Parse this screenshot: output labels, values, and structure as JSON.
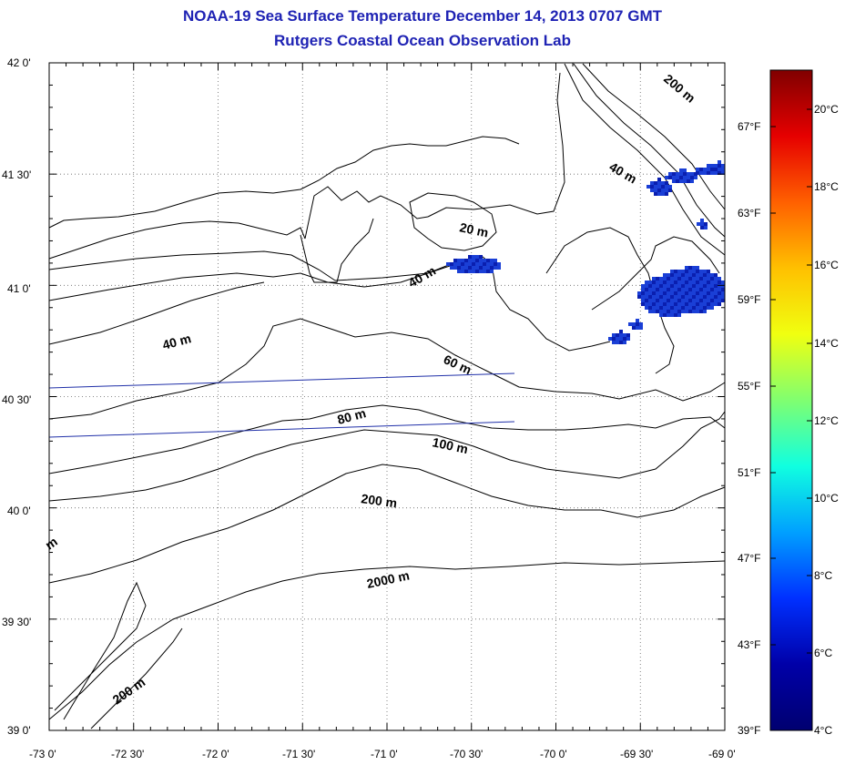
{
  "header": {
    "title": "NOAA-19 Sea Surface Temperature December 14, 2013 0707 GMT",
    "subtitle": "Rutgers Coastal Ocean Observation Lab"
  },
  "axes": {
    "lat_labels": [
      "42 0'",
      "41 30'",
      "41 0'",
      "40 30'",
      "40 0'",
      "39 30'",
      "39 0'"
    ],
    "lon_labels": [
      "-73 0'",
      "-72 30'",
      "-72 0'",
      "-71 30'",
      "-71 0'",
      "-70 30'",
      "-70 0'",
      "-69 30'",
      "-69 0'"
    ],
    "lat_range": [
      39.0,
      42.0
    ],
    "lon_range": [
      -73.0,
      -69.0
    ]
  },
  "colorbar": {
    "celsius_labels": [
      "20°C",
      "18°C",
      "16°C",
      "14°C",
      "12°C",
      "10°C",
      "8°C",
      "6°C",
      "4°C"
    ],
    "fahrenheit_labels": [
      "67°F",
      "63°F",
      "59°F",
      "55°F",
      "51°F",
      "47°F",
      "43°F",
      "39°F"
    ],
    "colors": [
      "#800000",
      "#e60000",
      "#ff6000",
      "#ffc000",
      "#f0ff10",
      "#80ff70",
      "#10ffe0",
      "#00a0ff",
      "#0030ff",
      "#0000a8",
      "#000070"
    ]
  },
  "contours": {
    "labels": [
      "200 m",
      "40 m",
      "20 m",
      "40 m",
      "40 m",
      "60 m",
      "80 m",
      "100 m",
      "200 m",
      "2000 m",
      "200 m",
      "m"
    ]
  },
  "sst_patch_color": "#1a3fd6"
}
